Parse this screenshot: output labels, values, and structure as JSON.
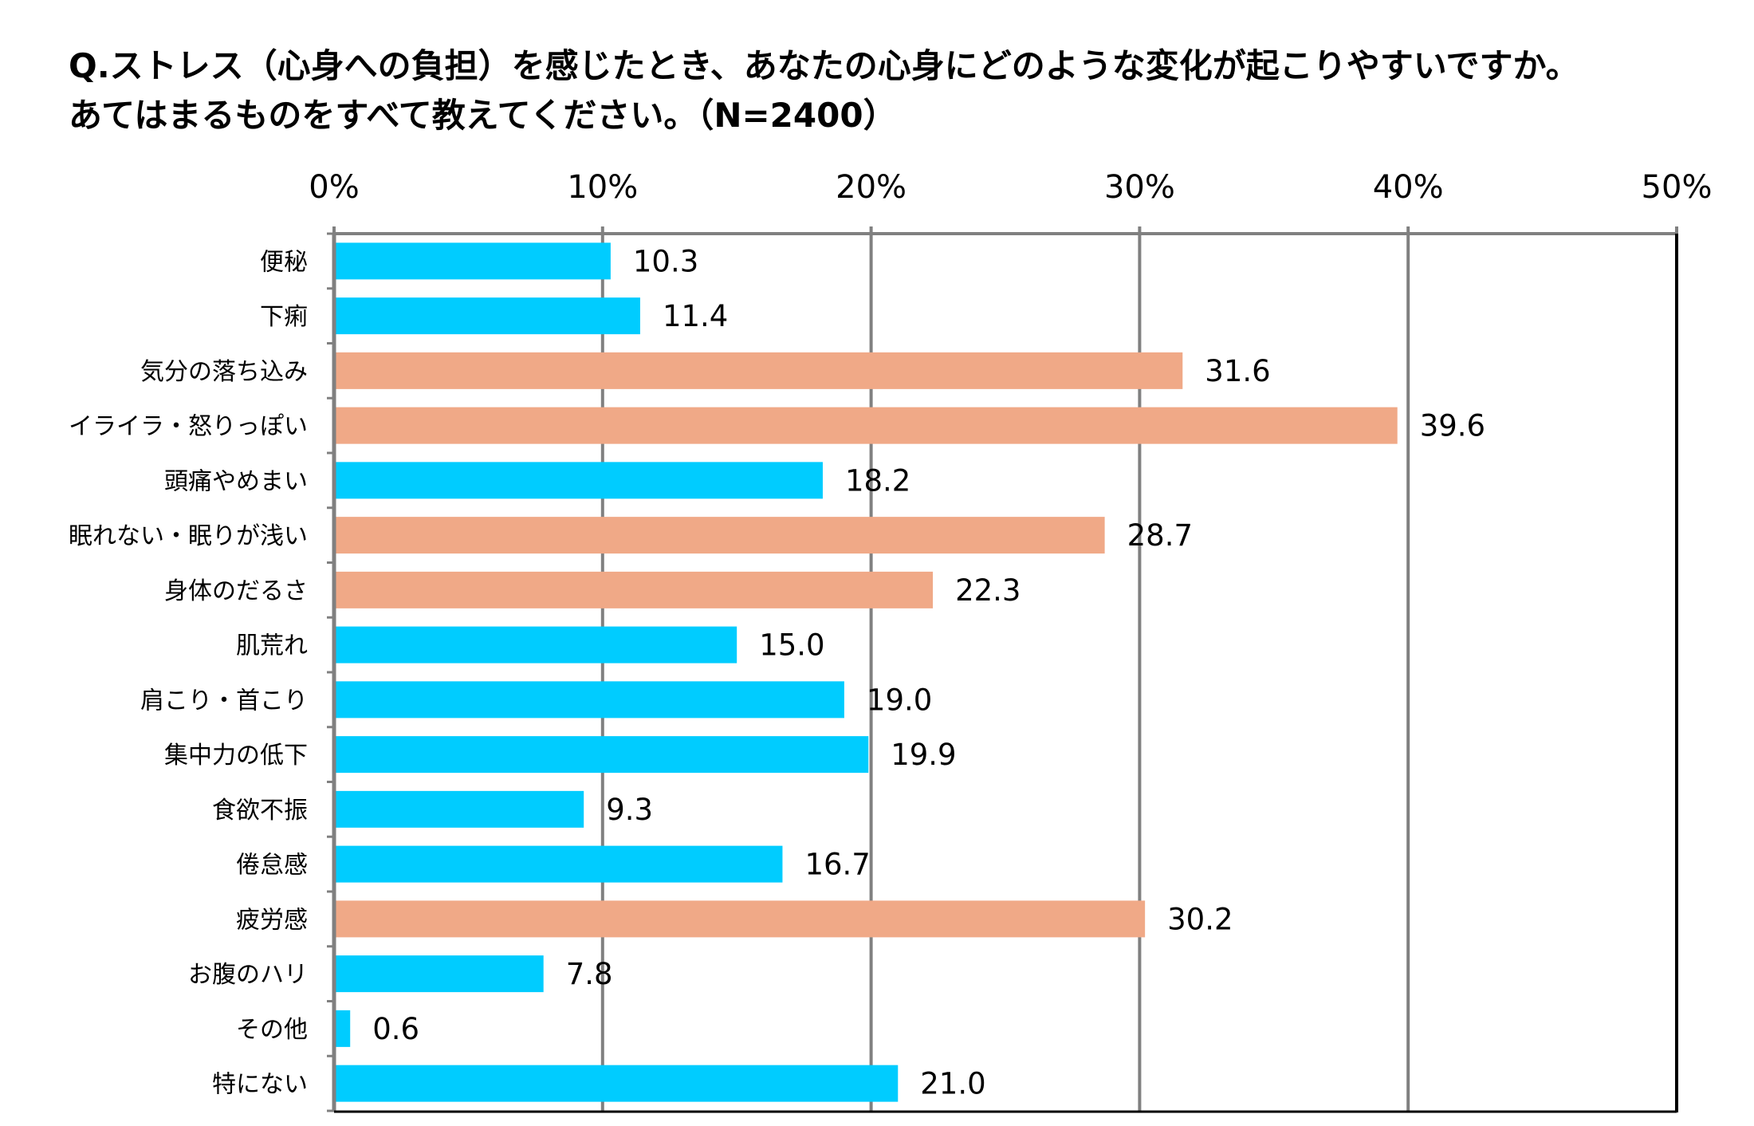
{
  "title": {
    "line1": "Q.ストレス（心身への負担）を感じたとき、あなたの心身にどのような変化が起こりやすいですか。",
    "line2": "あてはまるものをすべて教えてください。（N=2400）"
  },
  "colors": {
    "bar_blue": "#00CCFF",
    "bar_salmon": "#F0A987",
    "gridline": "#808080",
    "axis": "#000000"
  },
  "chart_data": {
    "type": "bar",
    "orientation": "horizontal",
    "title": "Q.ストレス（心身への負担）を感じたとき、あなたの心身にどのような変化が起こりやすいですか。あてはまるものをすべて教えてください。（N=2400）",
    "categories": [
      "便秘",
      "下痢",
      "気分の落ち込み",
      "イライラ・怒りっぽい",
      "頭痛やめまい",
      "眠れない・眠りが浅い",
      "身体のだるさ",
      "肌荒れ",
      "肩こり・首こり",
      "集中力の低下",
      "食欲不振",
      "倦怠感",
      "疲労感",
      "お腹のハリ",
      "その他",
      "特にない"
    ],
    "values": [
      10.3,
      11.4,
      31.6,
      39.6,
      18.2,
      28.7,
      22.3,
      15.0,
      19.0,
      19.9,
      9.3,
      16.7,
      30.2,
      7.8,
      0.6,
      21.0
    ],
    "value_labels": [
      "10.3",
      "11.4",
      "31.6",
      "39.6",
      "18.2",
      "28.7",
      "22.3",
      "15.0",
      "19.0",
      "19.9",
      "9.3",
      "16.7",
      "30.2",
      "7.8",
      "0.6",
      "21.0"
    ],
    "highlighted": [
      false,
      false,
      true,
      true,
      false,
      true,
      true,
      false,
      false,
      false,
      false,
      false,
      true,
      false,
      false,
      false
    ],
    "xlim": [
      0,
      50
    ],
    "xticks": [
      0,
      10,
      20,
      30,
      40,
      50
    ],
    "xtick_labels": [
      "0%",
      "10%",
      "20%",
      "30%",
      "40%",
      "50%"
    ],
    "x_axis_position": "top",
    "grid": true,
    "xlabel": "",
    "ylabel": ""
  }
}
